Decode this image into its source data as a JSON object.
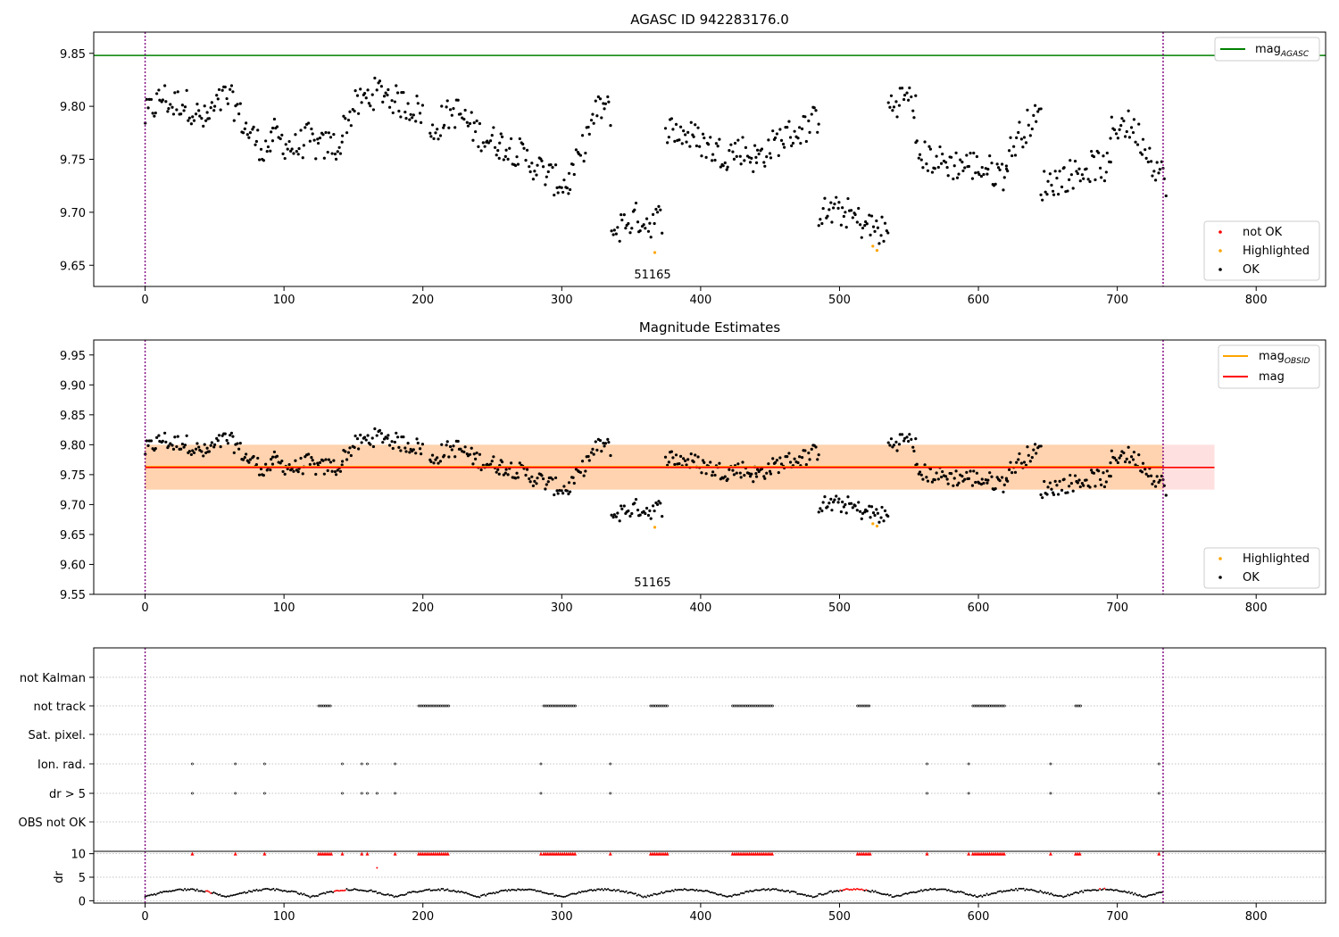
{
  "chart_data": [
    {
      "type": "scatter",
      "title": "AGASC ID 942283176.0",
      "xlim": [
        -37,
        850
      ],
      "ylim": [
        9.63,
        9.87
      ],
      "x_ticks": [
        0,
        100,
        200,
        300,
        400,
        500,
        600,
        700,
        800
      ],
      "y_ticks": [
        "9.65",
        "9.70",
        "9.75",
        "9.80",
        "9.85"
      ],
      "vlines": [
        0,
        733
      ],
      "hline": {
        "label": "mag_AGASC",
        "value": 9.848,
        "color": "#008000"
      },
      "annotation": {
        "text": "51165",
        "x": 367,
        "y": 9.64
      },
      "legend_line": {
        "label": "mag",
        "sub": "AGASC"
      },
      "legend_points": [
        {
          "label": "not OK",
          "color": "#ff0000"
        },
        {
          "label": "Highlighted",
          "color": "#ffa500"
        },
        {
          "label": "OK",
          "color": "#000000"
        }
      ],
      "highlighted": [
        [
          367,
          9.662
        ],
        [
          524,
          9.668
        ],
        [
          527,
          9.664
        ]
      ],
      "segments": [
        {
          "x0": 0,
          "x1": 45,
          "v": [
            9.79,
            9.8,
            9.81,
            9.8,
            9.805,
            9.8,
            9.79,
            9.785
          ]
        },
        {
          "x0": 45,
          "x1": 92,
          "v": [
            9.79,
            9.8,
            9.81,
            9.8,
            9.78,
            9.77,
            9.76,
            9.765
          ]
        },
        {
          "x0": 92,
          "x1": 142,
          "v": [
            9.775,
            9.765,
            9.76,
            9.77,
            9.76,
            9.765,
            9.76
          ]
        },
        {
          "x0": 142,
          "x1": 200,
          "v": [
            9.78,
            9.8,
            9.81,
            9.815,
            9.805,
            9.8,
            9.795
          ]
        },
        {
          "x0": 205,
          "x1": 255,
          "v": [
            9.77,
            9.79,
            9.795,
            9.78,
            9.77,
            9.765
          ]
        },
        {
          "x0": 255,
          "x1": 305,
          "v": [
            9.765,
            9.76,
            9.75,
            9.74,
            9.73,
            9.725
          ]
        },
        {
          "x0": 305,
          "x1": 335,
          "v": [
            9.73,
            9.75,
            9.78,
            9.8,
            9.795
          ]
        },
        {
          "x0": 336,
          "x1": 372,
          "v": [
            9.68,
            9.69,
            9.695,
            9.69,
            9.695
          ]
        },
        {
          "x0": 375,
          "x1": 440,
          "v": [
            9.78,
            9.775,
            9.77,
            9.76,
            9.755,
            9.76,
            9.75
          ]
        },
        {
          "x0": 440,
          "x1": 485,
          "v": [
            9.75,
            9.76,
            9.77,
            9.775,
            9.78,
            9.79
          ]
        },
        {
          "x0": 485,
          "x1": 535,
          "v": [
            9.7,
            9.7,
            9.7,
            9.69,
            9.685,
            9.68
          ]
        },
        {
          "x0": 535,
          "x1": 555,
          "v": [
            9.8,
            9.805,
            9.81,
            9.8
          ]
        },
        {
          "x0": 555,
          "x1": 620,
          "v": [
            9.755,
            9.75,
            9.745,
            9.745,
            9.74,
            9.735
          ]
        },
        {
          "x0": 620,
          "x1": 645,
          "v": [
            9.75,
            9.77,
            9.785,
            9.79
          ]
        },
        {
          "x0": 645,
          "x1": 695,
          "v": [
            9.725,
            9.73,
            9.735,
            9.74,
            9.745,
            9.74
          ]
        },
        {
          "x0": 695,
          "x1": 735,
          "v": [
            9.775,
            9.785,
            9.78,
            9.765,
            9.745,
            9.73
          ]
        }
      ]
    },
    {
      "type": "scatter",
      "title": "Magnitude Estimates",
      "xlim": [
        -37,
        850
      ],
      "ylim": [
        9.55,
        9.975
      ],
      "x_ticks": [
        0,
        100,
        200,
        300,
        400,
        500,
        600,
        700,
        800
      ],
      "y_ticks": [
        "9.55",
        "9.60",
        "9.65",
        "9.70",
        "9.75",
        "9.80",
        "9.85",
        "9.90",
        "9.95"
      ],
      "vlines": [
        0,
        733
      ],
      "mag_obsid": {
        "label": "mag",
        "sub": "OBSID",
        "value": 9.763,
        "color": "#ffa500",
        "x0": 0,
        "x1": 733,
        "band": [
          9.725,
          9.8
        ]
      },
      "mag": {
        "label": "mag",
        "value": 9.762,
        "color": "#ff0000",
        "x0": 0,
        "x1": 770,
        "band": [
          9.725,
          9.8
        ]
      },
      "annotation": {
        "text": "51165",
        "x": 367,
        "y": 9.565
      },
      "legend_points": [
        {
          "label": "Highlighted",
          "color": "#ffa500"
        },
        {
          "label": "OK",
          "color": "#000000"
        }
      ]
    },
    {
      "type": "scatter",
      "title": "",
      "xlim": [
        -37,
        850
      ],
      "x_ticks": [
        0,
        100,
        200,
        300,
        400,
        500,
        600,
        700,
        800
      ],
      "categories": [
        "not Kalman",
        "not track",
        "Sat. pixel.",
        "Ion. rad.",
        "dr > 5",
        "OBS not OK"
      ],
      "flags": {
        "not track": [
          [
            125,
            134
          ],
          [
            197,
            219
          ],
          [
            287,
            310
          ],
          [
            364,
            376
          ],
          [
            423,
            452
          ],
          [
            513,
            522
          ],
          [
            596,
            619
          ],
          [
            670,
            674
          ]
        ],
        "Ion. rad.": [
          34,
          65,
          86,
          142,
          156,
          160,
          180,
          285,
          335,
          563,
          593,
          652,
          730
        ],
        "dr > 5": [
          34,
          65,
          86,
          142,
          156,
          160,
          167,
          180,
          285,
          335,
          563,
          593,
          652,
          730
        ]
      },
      "dr": {
        "ylabel": "dr",
        "y_ticks": [
          "0",
          "5",
          "10"
        ],
        "ylim": [
          -0.5,
          10.5
        ],
        "clip_markers": [
          34,
          65,
          86,
          142,
          156,
          160,
          180,
          285,
          335,
          563,
          593,
          652,
          730,
          [
            125,
            134
          ],
          [
            197,
            219
          ],
          [
            287,
            310
          ],
          [
            364,
            376
          ],
          [
            423,
            452
          ],
          [
            513,
            522
          ],
          [
            596,
            619
          ],
          [
            670,
            674
          ]
        ]
      }
    }
  ]
}
